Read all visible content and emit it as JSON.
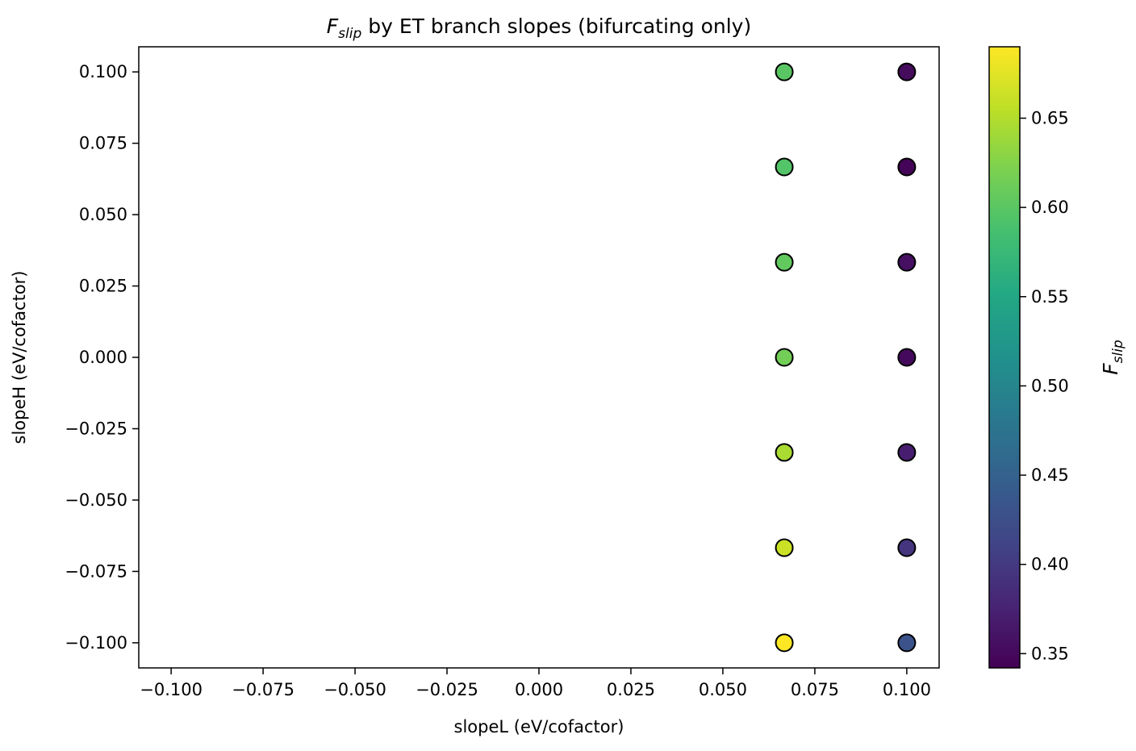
{
  "chart_data": {
    "type": "scatter",
    "title": {
      "main": "F",
      "sub": "slip",
      "rest": " by ET branch slopes (bifurcating only)"
    },
    "xlabel": "slopeL (eV/cofactor)",
    "ylabel": "slopeH (eV/cofactor)",
    "xlim": [
      -0.1088,
      0.1088
    ],
    "ylim": [
      -0.1088,
      0.1088
    ],
    "xticks": [
      {
        "value": -0.1,
        "label": "−0.100"
      },
      {
        "value": -0.075,
        "label": "−0.075"
      },
      {
        "value": -0.05,
        "label": "−0.050"
      },
      {
        "value": -0.025,
        "label": "−0.025"
      },
      {
        "value": 0.0,
        "label": "0.000"
      },
      {
        "value": 0.025,
        "label": "0.025"
      },
      {
        "value": 0.05,
        "label": "0.050"
      },
      {
        "value": 0.075,
        "label": "0.075"
      },
      {
        "value": 0.1,
        "label": "0.100"
      }
    ],
    "yticks": [
      {
        "value": 0.1,
        "label": "0.100"
      },
      {
        "value": 0.075,
        "label": "0.075"
      },
      {
        "value": 0.05,
        "label": "0.050"
      },
      {
        "value": 0.025,
        "label": "0.025"
      },
      {
        "value": 0.0,
        "label": "0.000"
      },
      {
        "value": -0.025,
        "label": "−0.025"
      },
      {
        "value": -0.05,
        "label": "−0.050"
      },
      {
        "value": -0.075,
        "label": "−0.075"
      },
      {
        "value": -0.1,
        "label": "−0.100"
      }
    ],
    "colorbar": {
      "label_main": "F",
      "label_sub": "slip",
      "colormap": "viridis",
      "range": [
        0.342,
        0.69
      ],
      "ticks": [
        {
          "value": 0.35,
          "label": "0.35"
        },
        {
          "value": 0.4,
          "label": "0.40"
        },
        {
          "value": 0.45,
          "label": "0.45"
        },
        {
          "value": 0.5,
          "label": "0.50"
        },
        {
          "value": 0.55,
          "label": "0.55"
        },
        {
          "value": 0.6,
          "label": "0.60"
        },
        {
          "value": 0.65,
          "label": "0.65"
        }
      ]
    },
    "points": [
      {
        "x": 0.0667,
        "y": 0.1,
        "c": 0.6
      },
      {
        "x": 0.0667,
        "y": 0.0667,
        "c": 0.595
      },
      {
        "x": 0.0667,
        "y": 0.0333,
        "c": 0.605
      },
      {
        "x": 0.0667,
        "y": 0.0,
        "c": 0.615
      },
      {
        "x": 0.0667,
        "y": -0.0333,
        "c": 0.645
      },
      {
        "x": 0.0667,
        "y": -0.0667,
        "c": 0.662
      },
      {
        "x": 0.0667,
        "y": -0.1,
        "c": 0.69
      },
      {
        "x": 0.1,
        "y": 0.1,
        "c": 0.352
      },
      {
        "x": 0.1,
        "y": 0.0667,
        "c": 0.345
      },
      {
        "x": 0.1,
        "y": 0.0333,
        "c": 0.356
      },
      {
        "x": 0.1,
        "y": 0.0,
        "c": 0.35
      },
      {
        "x": 0.1,
        "y": -0.0333,
        "c": 0.37
      },
      {
        "x": 0.1,
        "y": -0.0667,
        "c": 0.395
      },
      {
        "x": 0.1,
        "y": -0.1,
        "c": 0.43
      }
    ],
    "grid": false,
    "marker_edge_color": "#000000"
  }
}
